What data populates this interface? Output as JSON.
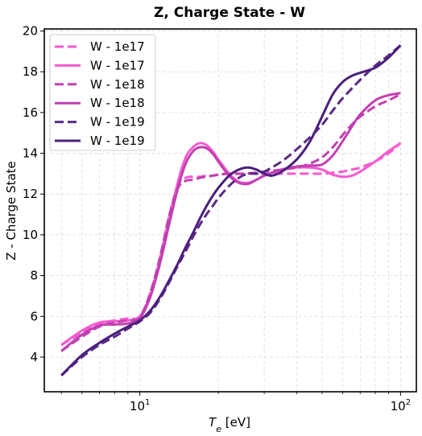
{
  "chart_data": {
    "type": "line",
    "title": "Z, Charge State - W",
    "xlabel_main": "T",
    "xlabel_sub": "e",
    "xlabel_unit": " [eV]",
    "ylabel": "Z - Charge State",
    "xscale": "log",
    "xlim": [
      4.3,
      115
    ],
    "ylim": [
      2.3,
      20.1
    ],
    "grid": true,
    "legend_position": "top-left",
    "y_ticks": [
      4,
      6,
      8,
      10,
      12,
      14,
      16,
      18,
      20
    ],
    "y_tick_labels": [
      "4",
      "6",
      "8",
      "10",
      "12",
      "14",
      "16",
      "18",
      "20"
    ],
    "x_ticks": [
      {
        "value": 10,
        "base": "10",
        "exp": "1"
      },
      {
        "value": 100,
        "base": "10",
        "exp": "2"
      }
    ],
    "series": [
      {
        "name": "W - 1e17",
        "color": "#f55ad0",
        "dash": true,
        "x": [
          5,
          6,
          7,
          8,
          9,
          10,
          11,
          12,
          13,
          14,
          15,
          16,
          17,
          18,
          19,
          20,
          22,
          25,
          28,
          30,
          35,
          40,
          45,
          50,
          55,
          60,
          65,
          70,
          80,
          90,
          100
        ],
        "y": [
          4.6,
          5.2,
          5.65,
          5.8,
          5.9,
          6.0,
          7.2,
          9.0,
          11.0,
          12.4,
          12.8,
          12.85,
          12.85,
          12.9,
          12.9,
          12.95,
          13.0,
          13.0,
          13.0,
          13.0,
          13.0,
          13.0,
          13.0,
          13.0,
          13.05,
          13.1,
          13.2,
          13.3,
          13.6,
          14.0,
          14.5
        ]
      },
      {
        "name": "W - 1e17",
        "color": "#f55ad0",
        "dash": false,
        "x": [
          5,
          6,
          7,
          8,
          9,
          10,
          11,
          12,
          13,
          14,
          15,
          16,
          17,
          18,
          19,
          20,
          22,
          24,
          26,
          28,
          30,
          35,
          40,
          45,
          50,
          55,
          60,
          65,
          70,
          80,
          90,
          100
        ],
        "y": [
          4.6,
          5.3,
          5.7,
          5.75,
          5.8,
          6.0,
          7.0,
          8.8,
          10.8,
          12.6,
          13.8,
          14.3,
          14.5,
          14.4,
          14.1,
          13.7,
          13.0,
          12.6,
          12.55,
          12.7,
          12.9,
          13.2,
          13.3,
          13.3,
          13.2,
          12.95,
          12.85,
          12.9,
          13.1,
          13.6,
          14.1,
          14.5
        ]
      },
      {
        "name": "W - 1e18",
        "color": "#c23fb2",
        "dash": true,
        "x": [
          5,
          6,
          7,
          8,
          9,
          10,
          11,
          12,
          13,
          14,
          15,
          16,
          17,
          18,
          19,
          20,
          22,
          25,
          28,
          30,
          35,
          40,
          45,
          50,
          55,
          60,
          65,
          70,
          80,
          90,
          100
        ],
        "y": [
          4.3,
          5.0,
          5.5,
          5.7,
          5.8,
          5.95,
          7.2,
          9.0,
          11.0,
          12.3,
          12.65,
          12.7,
          12.8,
          12.85,
          12.9,
          12.95,
          13.0,
          13.0,
          13.05,
          13.1,
          13.2,
          13.3,
          13.5,
          13.8,
          14.3,
          14.9,
          15.4,
          15.8,
          16.3,
          16.6,
          16.9
        ]
      },
      {
        "name": "W - 1e18",
        "color": "#c23fb2",
        "dash": false,
        "x": [
          5,
          6,
          7,
          8,
          9,
          10,
          11,
          12,
          13,
          14,
          15,
          16,
          17,
          18,
          19,
          20,
          22,
          24,
          26,
          28,
          30,
          35,
          40,
          45,
          50,
          55,
          60,
          65,
          70,
          80,
          90,
          100
        ],
        "y": [
          4.3,
          5.1,
          5.55,
          5.6,
          5.65,
          5.9,
          7.0,
          8.7,
          10.6,
          12.3,
          13.5,
          14.1,
          14.3,
          14.25,
          14.0,
          13.6,
          12.9,
          12.55,
          12.5,
          12.7,
          12.9,
          13.2,
          13.35,
          13.4,
          13.45,
          13.9,
          14.6,
          15.3,
          15.9,
          16.6,
          16.85,
          16.95
        ]
      },
      {
        "name": "W - 1e19",
        "color": "#5b2a86",
        "dash": true,
        "x": [
          5,
          6,
          7,
          8,
          9,
          10,
          11,
          12,
          13,
          14,
          15,
          16,
          17,
          18,
          19,
          20,
          22,
          24,
          26,
          28,
          30,
          35,
          40,
          45,
          50,
          55,
          60,
          70,
          80,
          90,
          100
        ],
        "y": [
          3.1,
          4.0,
          4.6,
          5.0,
          5.4,
          5.75,
          6.2,
          6.9,
          7.7,
          8.5,
          9.2,
          9.9,
          10.5,
          11.0,
          11.4,
          11.8,
          12.4,
          12.8,
          13.0,
          13.0,
          13.1,
          13.6,
          14.2,
          14.8,
          15.4,
          16.1,
          16.7,
          17.6,
          18.3,
          18.8,
          19.3
        ]
      },
      {
        "name": "W - 1e19",
        "color": "#4b1f7d",
        "dash": false,
        "x": [
          5,
          6,
          7,
          8,
          9,
          10,
          11,
          12,
          13,
          14,
          15,
          16,
          17,
          18,
          19,
          20,
          22,
          24,
          26,
          28,
          30,
          32,
          35,
          40,
          45,
          50,
          55,
          60,
          65,
          70,
          80,
          90,
          100
        ],
        "y": [
          3.1,
          4.1,
          4.7,
          5.15,
          5.5,
          5.8,
          6.3,
          7.0,
          7.8,
          8.6,
          9.4,
          10.1,
          10.8,
          11.4,
          11.9,
          12.3,
          12.9,
          13.2,
          13.3,
          13.2,
          13.0,
          12.9,
          13.1,
          13.7,
          14.6,
          15.8,
          16.9,
          17.5,
          17.8,
          17.95,
          18.2,
          18.7,
          19.3
        ]
      }
    ]
  }
}
